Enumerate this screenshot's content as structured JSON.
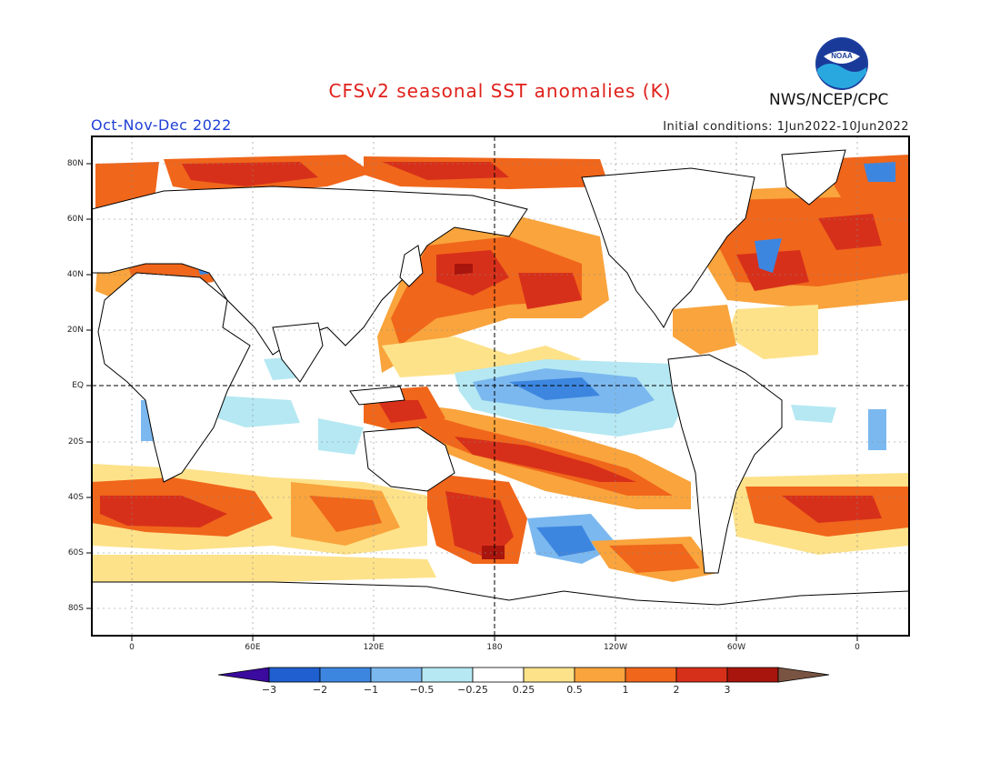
{
  "title": "CFSv2 seasonal SST anomalies (K)",
  "period": "Oct-Nov-Dec 2022",
  "initial_conditions": "Initial conditions: 1Jun2022-10Jun2022",
  "agency": "NWS/NCEP/CPC",
  "logo_text": "NOAA",
  "lat_ticks": [
    "80N",
    "60N",
    "40N",
    "20N",
    "EQ",
    "20S",
    "40S",
    "60S",
    "80S"
  ],
  "lon_ticks": [
    "0",
    "60E",
    "120E",
    "180",
    "120W",
    "60W",
    "0"
  ],
  "legend": {
    "labels": [
      "−3",
      "−2",
      "−1",
      "−0.5",
      "−0.25",
      "0.25",
      "0.5",
      "1",
      "2",
      "3"
    ],
    "colors": [
      "#3b0a9e",
      "#1f5fcf",
      "#3d86e0",
      "#7bb8ef",
      "#b5e8f2",
      "#ffffff",
      "#fde28a",
      "#f9a43c",
      "#f0661b",
      "#d7301a",
      "#a8150d",
      "#7a5442"
    ]
  },
  "colors": {
    "title": "#e0201b",
    "period": "#1f3fd6",
    "land": "#ffffff",
    "coast": "#000000"
  }
}
